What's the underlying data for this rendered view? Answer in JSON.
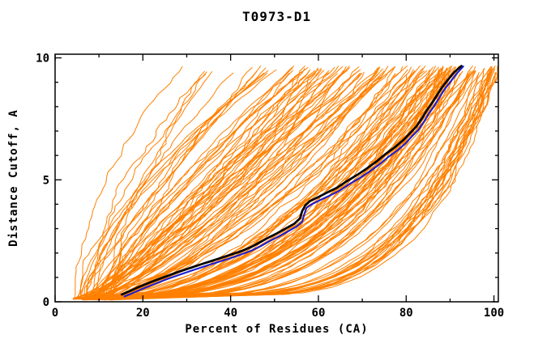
{
  "figure": {
    "background": "#ffffff"
  },
  "chart_data": {
    "type": "line",
    "title": "T0973-D1",
    "xlabel": "Percent of Residues (CA)",
    "ylabel": "Distance Cutoff, A",
    "xlim": [
      0,
      100
    ],
    "ylim": [
      0,
      10
    ],
    "x_ticks_major": [
      0,
      20,
      40,
      60,
      80,
      100
    ],
    "x_tick_minor_step": 10,
    "y_ticks_major": [
      0,
      5,
      10
    ],
    "y_tick_minor_step": 1,
    "grid": false,
    "legend": false,
    "axes_color": "#000000",
    "series": [
      {
        "name": "server-models-ensemble",
        "role": "ensemble",
        "color": "#ff8000",
        "count": 150,
        "seed": 20973,
        "line_width": 1,
        "start_percent_range": [
          4.2,
          13.0
        ],
        "end_percent_range": [
          26.0,
          100.8
        ],
        "cutoff_range": [
          0.12,
          9.68
        ],
        "note": "about 150 orange model accuracy curves (percent of CA residues under each distance cutoff), fanning from roughly 5-13 percent at 0 A up to 26-100 percent near 9.7 A, densest toward the lower right"
      },
      {
        "name": "highlighted-model-black",
        "role": "highlight",
        "color": "#000000",
        "line_width": 2.7,
        "points": [
          [
            15.2,
            0.3
          ],
          [
            16.8,
            0.42
          ],
          [
            19,
            0.6
          ],
          [
            22,
            0.82
          ],
          [
            25,
            1.02
          ],
          [
            28,
            1.22
          ],
          [
            31,
            1.4
          ],
          [
            34,
            1.58
          ],
          [
            37,
            1.75
          ],
          [
            40,
            1.93
          ],
          [
            42.5,
            2.08
          ],
          [
            44.5,
            2.23
          ],
          [
            46.5,
            2.42
          ],
          [
            48.5,
            2.62
          ],
          [
            50.5,
            2.8
          ],
          [
            52.5,
            3.0
          ],
          [
            54.5,
            3.2
          ],
          [
            55.8,
            3.42
          ],
          [
            56.3,
            3.72
          ],
          [
            57,
            3.95
          ],
          [
            58,
            4.12
          ],
          [
            60,
            4.3
          ],
          [
            62,
            4.48
          ],
          [
            64.3,
            4.68
          ],
          [
            66.5,
            4.95
          ],
          [
            69,
            5.22
          ],
          [
            71,
            5.46
          ],
          [
            73.3,
            5.76
          ],
          [
            75.3,
            6.06
          ],
          [
            77.3,
            6.32
          ],
          [
            79.3,
            6.62
          ],
          [
            80.8,
            6.9
          ],
          [
            82.3,
            7.18
          ],
          [
            83.6,
            7.52
          ],
          [
            84.6,
            7.82
          ],
          [
            85.8,
            8.12
          ],
          [
            87,
            8.46
          ],
          [
            88.2,
            8.8
          ],
          [
            89.5,
            9.1
          ],
          [
            91,
            9.42
          ],
          [
            92.6,
            9.67
          ]
        ]
      },
      {
        "name": "highlighted-model-blue",
        "role": "highlight",
        "color": "#1e1ecd",
        "line_width": 2.1,
        "points": [
          [
            15.8,
            0.22
          ],
          [
            17.3,
            0.33
          ],
          [
            19.5,
            0.5
          ],
          [
            22.5,
            0.72
          ],
          [
            25.5,
            0.93
          ],
          [
            28.5,
            1.12
          ],
          [
            31.5,
            1.3
          ],
          [
            34.5,
            1.48
          ],
          [
            37.5,
            1.65
          ],
          [
            40.5,
            1.82
          ],
          [
            43,
            1.98
          ],
          [
            45,
            2.12
          ],
          [
            47,
            2.3
          ],
          [
            49,
            2.5
          ],
          [
            51,
            2.68
          ],
          [
            53,
            2.88
          ],
          [
            55,
            3.08
          ],
          [
            56.3,
            3.28
          ],
          [
            56.8,
            3.6
          ],
          [
            57.3,
            3.85
          ],
          [
            58.5,
            4.0
          ],
          [
            60.5,
            4.18
          ],
          [
            62.5,
            4.35
          ],
          [
            64.8,
            4.55
          ],
          [
            67,
            4.82
          ],
          [
            69.5,
            5.08
          ],
          [
            71.5,
            5.32
          ],
          [
            73.8,
            5.62
          ],
          [
            75.8,
            5.92
          ],
          [
            77.8,
            6.18
          ],
          [
            79.8,
            6.48
          ],
          [
            81.3,
            6.78
          ],
          [
            82.8,
            7.05
          ],
          [
            84.1,
            7.4
          ],
          [
            85.1,
            7.7
          ],
          [
            86.3,
            8.0
          ],
          [
            87.5,
            8.35
          ],
          [
            88.7,
            8.7
          ],
          [
            90,
            9.0
          ],
          [
            91.4,
            9.33
          ],
          [
            93,
            9.65
          ]
        ]
      }
    ]
  }
}
